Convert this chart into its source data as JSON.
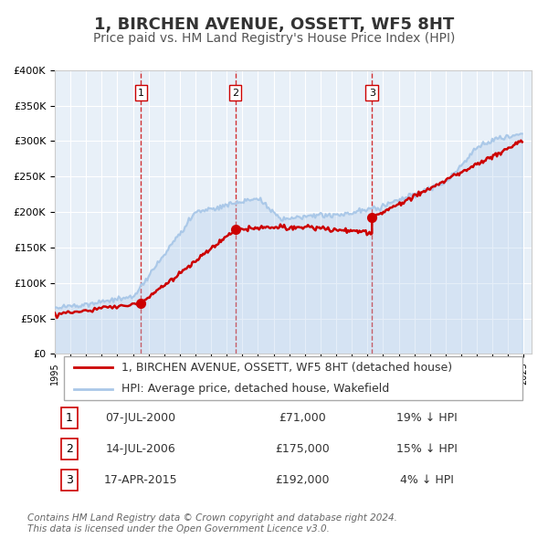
{
  "title": "1, BIRCHEN AVENUE, OSSETT, WF5 8HT",
  "subtitle": "Price paid vs. HM Land Registry's House Price Index (HPI)",
  "title_fontsize": 13,
  "subtitle_fontsize": 10,
  "background_color": "#ffffff",
  "plot_bg_color": "#e8f0f8",
  "grid_color": "#ffffff",
  "ylim": [
    0,
    400000
  ],
  "yticks": [
    0,
    50000,
    100000,
    150000,
    200000,
    250000,
    300000,
    350000,
    400000
  ],
  "xlim_start": 1995.0,
  "xlim_end": 2025.5,
  "sale_color": "#cc0000",
  "hpi_color": "#aac8e8",
  "sale_linewidth": 1.8,
  "hpi_linewidth": 1.5,
  "vline_color": "#cc0000",
  "sale_label": "1, BIRCHEN AVENUE, OSSETT, WF5 8HT (detached house)",
  "hpi_label": "HPI: Average price, detached house, Wakefield",
  "transactions": [
    {
      "num": 1,
      "date": "07-JUL-2000",
      "year": 2000.52,
      "price": 71000,
      "pct": "19%",
      "dir": "↓"
    },
    {
      "num": 2,
      "date": "14-JUL-2006",
      "year": 2006.54,
      "price": 175000,
      "pct": "15%",
      "dir": "↓"
    },
    {
      "num": 3,
      "date": "17-APR-2015",
      "year": 2015.29,
      "price": 192000,
      "pct": "4%",
      "dir": "↓"
    }
  ],
  "footnote": "Contains HM Land Registry data © Crown copyright and database right 2024.\nThis data is licensed under the Open Government Licence v3.0.",
  "legend_fontsize": 9,
  "footnote_fontsize": 7.5,
  "table_fontsize": 9
}
